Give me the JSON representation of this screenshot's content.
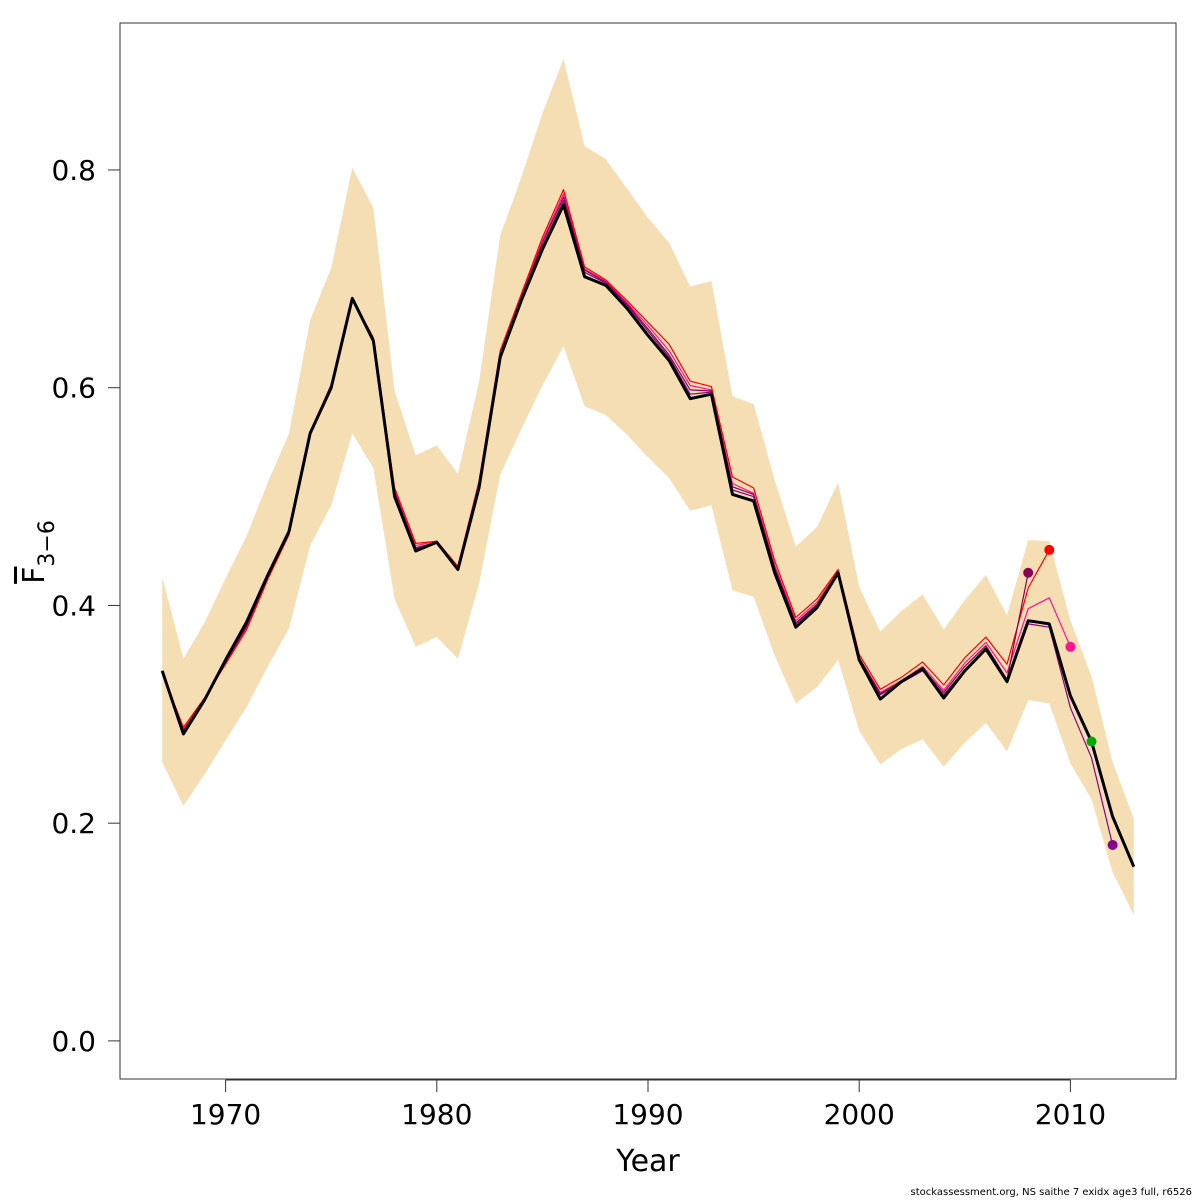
{
  "chart_data": {
    "type": "line",
    "xlabel": "Year",
    "ylabel": {
      "main": "F",
      "sub": "3−6"
    },
    "xlim": [
      1965,
      2015
    ],
    "ylim": [
      -0.035,
      0.935
    ],
    "x_ticks": [
      1970,
      1980,
      1990,
      2000,
      2010
    ],
    "y_ticks": [
      0.0,
      0.2,
      0.4,
      0.6,
      0.8
    ],
    "y_tick_labels": [
      "0.0",
      "0.2",
      "0.4",
      "0.6",
      "0.8"
    ],
    "band_color": "#f5deb3",
    "confidence_band": {
      "x": [
        1967,
        1968,
        1969,
        1970,
        1971,
        1972,
        1973,
        1974,
        1975,
        1976,
        1977,
        1978,
        1979,
        1980,
        1981,
        1982,
        1983,
        1984,
        1985,
        1986,
        1987,
        1988,
        1989,
        1990,
        1991,
        1992,
        1993,
        1994,
        1995,
        1996,
        1997,
        1998,
        1999,
        2000,
        2001,
        2002,
        2003,
        2004,
        2005,
        2006,
        2007,
        2008,
        2009,
        2010,
        2011,
        2012,
        2013
      ],
      "lower": [
        0.256,
        0.216,
        0.245,
        0.276,
        0.307,
        0.344,
        0.379,
        0.455,
        0.492,
        0.558,
        0.526,
        0.406,
        0.362,
        0.371,
        0.351,
        0.42,
        0.52,
        0.562,
        0.602,
        0.638,
        0.583,
        0.575,
        0.557,
        0.536,
        0.517,
        0.487,
        0.492,
        0.414,
        0.408,
        0.354,
        0.31,
        0.325,
        0.35,
        0.285,
        0.254,
        0.268,
        0.277,
        0.252,
        0.274,
        0.292,
        0.266,
        0.313,
        0.31,
        0.255,
        0.222,
        0.155,
        0.116
      ],
      "upper": [
        0.426,
        0.351,
        0.384,
        0.425,
        0.464,
        0.513,
        0.558,
        0.662,
        0.71,
        0.802,
        0.765,
        0.597,
        0.538,
        0.547,
        0.521,
        0.605,
        0.74,
        0.793,
        0.852,
        0.902,
        0.822,
        0.81,
        0.783,
        0.756,
        0.733,
        0.693,
        0.698,
        0.592,
        0.585,
        0.515,
        0.454,
        0.472,
        0.513,
        0.417,
        0.376,
        0.395,
        0.41,
        0.378,
        0.405,
        0.428,
        0.391,
        0.46,
        0.459,
        0.386,
        0.335,
        0.256,
        0.204
      ]
    },
    "series": [
      {
        "color": "#000000",
        "width": 3,
        "x": [
          1967,
          1968,
          1969,
          1970,
          1971,
          1972,
          1973,
          1974,
          1975,
          1976,
          1977,
          1978,
          1979,
          1980,
          1981,
          1982,
          1983,
          1984,
          1985,
          1986,
          1987,
          1988,
          1989,
          1990,
          1991,
          1992,
          1993,
          1994,
          1995,
          1996,
          1997,
          1998,
          1999,
          2000,
          2001,
          2002,
          2003,
          2004,
          2005,
          2006,
          2007,
          2008,
          2009,
          2010,
          2011,
          2012,
          2013
        ],
        "values": [
          0.34,
          0.282,
          0.313,
          0.35,
          0.385,
          0.428,
          0.468,
          0.558,
          0.6,
          0.682,
          0.643,
          0.5,
          0.45,
          0.458,
          0.433,
          0.508,
          0.628,
          0.68,
          0.727,
          0.768,
          0.702,
          0.694,
          0.673,
          0.648,
          0.625,
          0.59,
          0.594,
          0.502,
          0.496,
          0.43,
          0.38,
          0.398,
          0.43,
          0.35,
          0.314,
          0.33,
          0.342,
          0.315,
          0.34,
          0.36,
          0.33,
          0.386,
          0.383,
          0.317,
          0.275,
          0.206,
          0.16
        ]
      },
      {
        "color": "#00aa00",
        "width": 1.2,
        "x": [
          2008,
          2009,
          2010,
          2011
        ],
        "values": [
          0.385,
          0.383,
          0.317,
          0.275
        ],
        "endpoint": true
      },
      {
        "color": "#8b008b",
        "width": 1.2,
        "x": [
          1967,
          1968,
          1969,
          1970,
          1971,
          1972,
          1973,
          1974,
          1975,
          1976,
          1977,
          1978,
          1979,
          1980,
          1981,
          1982,
          1983,
          1984,
          1985,
          1986,
          1987,
          1988,
          1989,
          1990,
          1991,
          1992,
          1993,
          1994,
          1995,
          1996,
          1997,
          1998,
          1999,
          2000,
          2001,
          2002,
          2003,
          2004,
          2005,
          2006,
          2007,
          2008,
          2009,
          2010,
          2011,
          2012
        ],
        "values": [
          0.34,
          0.284,
          0.313,
          0.349,
          0.382,
          0.426,
          0.467,
          0.558,
          0.601,
          0.683,
          0.644,
          0.503,
          0.452,
          0.458,
          0.433,
          0.51,
          0.63,
          0.682,
          0.73,
          0.772,
          0.706,
          0.696,
          0.676,
          0.652,
          0.628,
          0.594,
          0.596,
          0.506,
          0.5,
          0.433,
          0.383,
          0.4,
          0.431,
          0.351,
          0.318,
          0.329,
          0.34,
          0.318,
          0.341,
          0.361,
          0.329,
          0.383,
          0.38,
          0.306,
          0.26,
          0.18
        ],
        "endpoint": true
      },
      {
        "color": "#ff1493",
        "width": 1.2,
        "x": [
          1967,
          1968,
          1969,
          1970,
          1971,
          1972,
          1973,
          1974,
          1975,
          1976,
          1977,
          1978,
          1979,
          1980,
          1981,
          1982,
          1983,
          1984,
          1985,
          1986,
          1987,
          1988,
          1989,
          1990,
          1991,
          1992,
          1993,
          1994,
          1995,
          1996,
          1997,
          1998,
          1999,
          2000,
          2001,
          2002,
          2003,
          2004,
          2005,
          2006,
          2007,
          2008,
          2009,
          2010
        ],
        "values": [
          0.339,
          0.286,
          0.314,
          0.347,
          0.38,
          0.425,
          0.466,
          0.559,
          0.602,
          0.681,
          0.645,
          0.506,
          0.455,
          0.459,
          0.435,
          0.512,
          0.632,
          0.684,
          0.735,
          0.778,
          0.709,
          0.698,
          0.678,
          0.657,
          0.634,
          0.602,
          0.598,
          0.512,
          0.503,
          0.437,
          0.386,
          0.403,
          0.432,
          0.352,
          0.32,
          0.331,
          0.344,
          0.322,
          0.347,
          0.366,
          0.338,
          0.397,
          0.407,
          0.362
        ],
        "endpoint": true
      },
      {
        "color": "#ff0000",
        "width": 1.2,
        "x": [
          1967,
          1968,
          1969,
          1970,
          1971,
          1972,
          1973,
          1974,
          1975,
          1976,
          1977,
          1978,
          1979,
          1980,
          1981,
          1982,
          1983,
          1984,
          1985,
          1986,
          1987,
          1988,
          1989,
          1990,
          1991,
          1992,
          1993,
          1994,
          1995,
          1996,
          1997,
          1998,
          1999,
          2000,
          2001,
          2002,
          2003,
          2004,
          2005,
          2006,
          2007,
          2008,
          2009
        ],
        "values": [
          0.338,
          0.288,
          0.315,
          0.346,
          0.378,
          0.424,
          0.465,
          0.559,
          0.603,
          0.682,
          0.646,
          0.508,
          0.457,
          0.459,
          0.436,
          0.514,
          0.634,
          0.686,
          0.738,
          0.782,
          0.711,
          0.699,
          0.68,
          0.66,
          0.64,
          0.606,
          0.601,
          0.518,
          0.508,
          0.441,
          0.389,
          0.406,
          0.433,
          0.355,
          0.323,
          0.334,
          0.348,
          0.327,
          0.352,
          0.371,
          0.346,
          0.416,
          0.451
        ],
        "endpoint": true
      },
      {
        "color": "#8b0057",
        "width": 1.2,
        "x": [
          1967,
          1968,
          1969,
          1970,
          1971,
          1972,
          1973,
          1974,
          1975,
          1976,
          1977,
          1978,
          1979,
          1980,
          1981,
          1982,
          1983,
          1984,
          1985,
          1986,
          1987,
          1988,
          1989,
          1990,
          1991,
          1992,
          1993,
          1994,
          1995,
          1996,
          1997,
          1998,
          1999,
          2000,
          2001,
          2002,
          2003,
          2004,
          2005,
          2006,
          2007,
          2008
        ],
        "values": [
          0.339,
          0.285,
          0.313,
          0.348,
          0.381,
          0.427,
          0.466,
          0.558,
          0.601,
          0.682,
          0.644,
          0.504,
          0.453,
          0.458,
          0.434,
          0.511,
          0.631,
          0.683,
          0.733,
          0.775,
          0.708,
          0.697,
          0.677,
          0.654,
          0.63,
          0.598,
          0.597,
          0.509,
          0.502,
          0.435,
          0.384,
          0.401,
          0.431,
          0.352,
          0.319,
          0.33,
          0.342,
          0.32,
          0.344,
          0.363,
          0.332,
          0.43
        ],
        "endpoint": true
      }
    ]
  },
  "footer": "stockassessment.org, NS saithe 7 exidx age3 full, r6526"
}
